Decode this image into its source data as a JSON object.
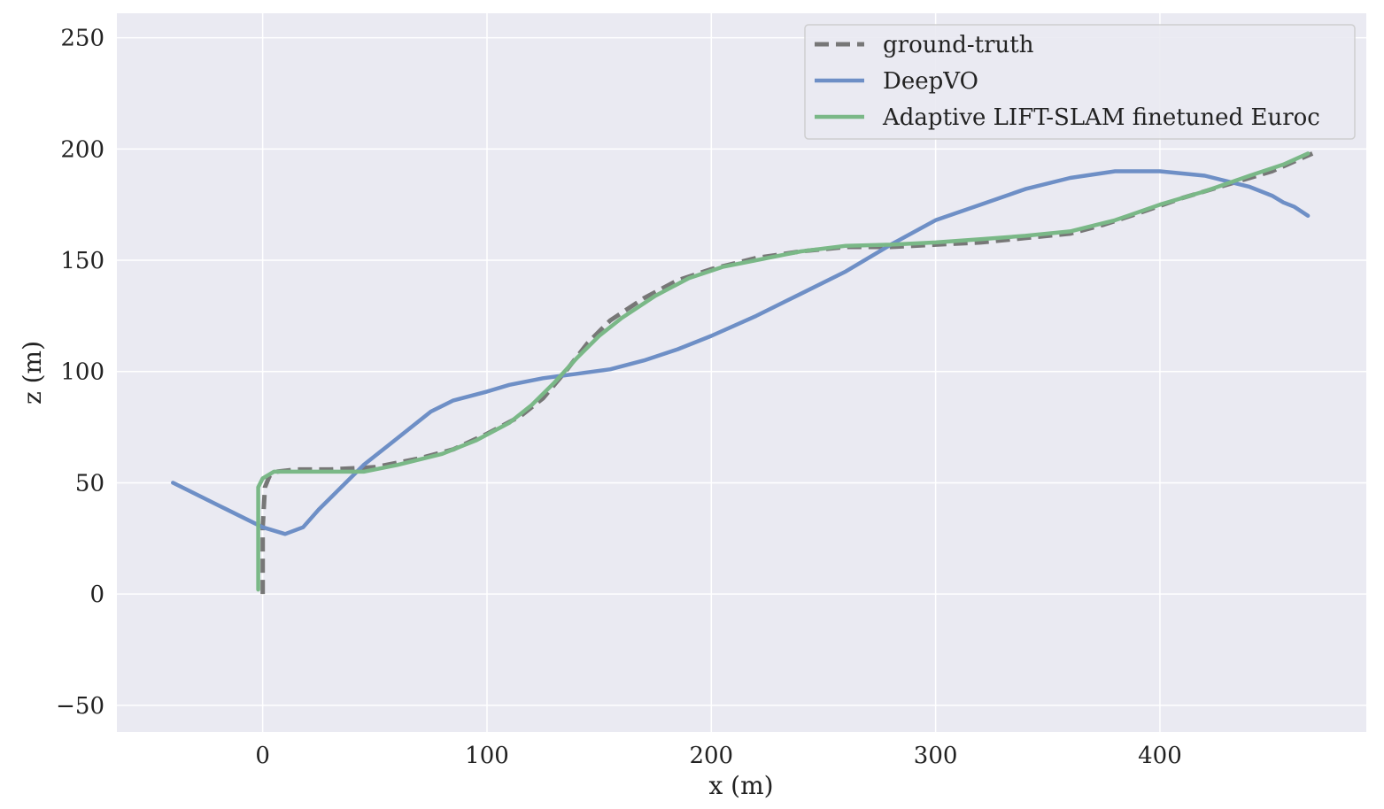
{
  "chart_data": {
    "type": "line",
    "xlabel": "x (m)",
    "ylabel": "z (m)",
    "xlim": [
      -65,
      492
    ],
    "ylim": [
      -62,
      261
    ],
    "xticks": [
      0,
      100,
      200,
      300,
      400
    ],
    "xtick_labels": [
      "0",
      "100",
      "200",
      "300",
      "400"
    ],
    "yticks": [
      -50,
      0,
      50,
      100,
      150,
      200,
      250
    ],
    "ytick_labels": [
      "−50",
      "0",
      "50",
      "100",
      "150",
      "200",
      "250"
    ],
    "grid": true,
    "legend_position": "top-right",
    "series": [
      {
        "name": "ground-truth",
        "color": "#777777",
        "style": "dashed",
        "points": [
          [
            0,
            0
          ],
          [
            0,
            30
          ],
          [
            1,
            48
          ],
          [
            3,
            53
          ],
          [
            6,
            55
          ],
          [
            15,
            56
          ],
          [
            30,
            56
          ],
          [
            50,
            57
          ],
          [
            70,
            61
          ],
          [
            85,
            65
          ],
          [
            100,
            72
          ],
          [
            115,
            80
          ],
          [
            125,
            88
          ],
          [
            135,
            100
          ],
          [
            145,
            113
          ],
          [
            155,
            123
          ],
          [
            170,
            133
          ],
          [
            185,
            141
          ],
          [
            200,
            146
          ],
          [
            220,
            151
          ],
          [
            240,
            154
          ],
          [
            260,
            156
          ],
          [
            280,
            156
          ],
          [
            300,
            157
          ],
          [
            320,
            158
          ],
          [
            340,
            160
          ],
          [
            360,
            162
          ],
          [
            375,
            166
          ],
          [
            390,
            171
          ],
          [
            410,
            178
          ],
          [
            430,
            184
          ],
          [
            450,
            190
          ],
          [
            468,
            198
          ]
        ]
      },
      {
        "name": "DeepVO",
        "color": "#6e8fc6",
        "style": "solid",
        "points": [
          [
            -40,
            50
          ],
          [
            -20,
            40
          ],
          [
            0,
            30
          ],
          [
            10,
            27
          ],
          [
            18,
            30
          ],
          [
            25,
            38
          ],
          [
            35,
            48
          ],
          [
            45,
            58
          ],
          [
            55,
            66
          ],
          [
            65,
            74
          ],
          [
            75,
            82
          ],
          [
            85,
            87
          ],
          [
            100,
            91
          ],
          [
            110,
            94
          ],
          [
            125,
            97
          ],
          [
            140,
            99
          ],
          [
            155,
            101
          ],
          [
            170,
            105
          ],
          [
            185,
            110
          ],
          [
            200,
            116
          ],
          [
            220,
            125
          ],
          [
            240,
            135
          ],
          [
            260,
            145
          ],
          [
            280,
            157
          ],
          [
            300,
            168
          ],
          [
            320,
            175
          ],
          [
            340,
            182
          ],
          [
            360,
            187
          ],
          [
            380,
            190
          ],
          [
            400,
            190
          ],
          [
            420,
            188
          ],
          [
            440,
            183
          ],
          [
            450,
            179
          ],
          [
            455,
            176
          ],
          [
            460,
            174
          ],
          [
            466,
            170
          ]
        ]
      },
      {
        "name": "Adaptive LIFT-SLAM finetuned Euroc",
        "color": "#7ab887",
        "style": "solid",
        "points": [
          [
            -2,
            2
          ],
          [
            -2,
            30
          ],
          [
            -2,
            48
          ],
          [
            0,
            52
          ],
          [
            5,
            55
          ],
          [
            15,
            55
          ],
          [
            30,
            55
          ],
          [
            45,
            55
          ],
          [
            60,
            58
          ],
          [
            80,
            63
          ],
          [
            95,
            69
          ],
          [
            110,
            77
          ],
          [
            120,
            85
          ],
          [
            130,
            95
          ],
          [
            140,
            106
          ],
          [
            150,
            116
          ],
          [
            160,
            124
          ],
          [
            175,
            134
          ],
          [
            190,
            142
          ],
          [
            205,
            147
          ],
          [
            220,
            150
          ],
          [
            240,
            154
          ],
          [
            260,
            156.5
          ],
          [
            280,
            157
          ],
          [
            300,
            158
          ],
          [
            320,
            159.5
          ],
          [
            340,
            161
          ],
          [
            360,
            163
          ],
          [
            380,
            168
          ],
          [
            400,
            175
          ],
          [
            420,
            181
          ],
          [
            440,
            188
          ],
          [
            455,
            193
          ],
          [
            466,
            198
          ]
        ]
      }
    ]
  }
}
